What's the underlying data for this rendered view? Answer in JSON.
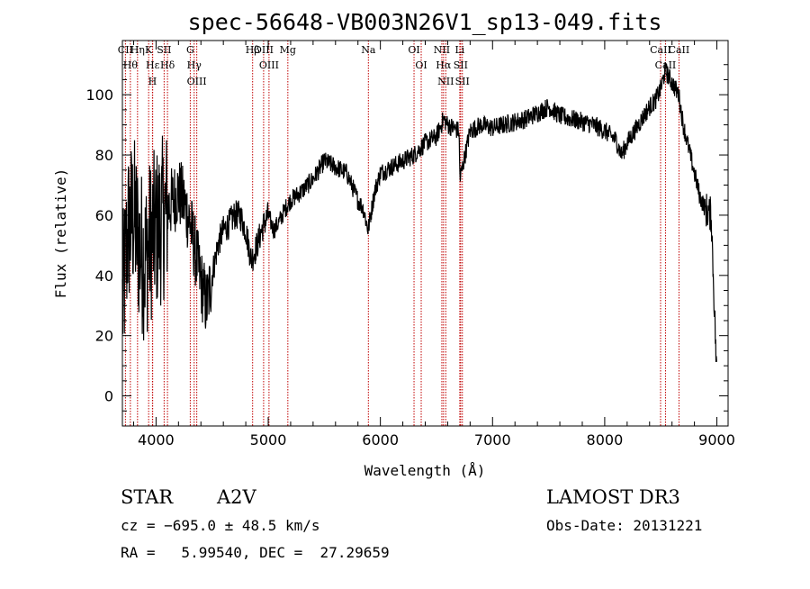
{
  "chart_data": {
    "type": "line",
    "title": "spec-56648-VB003N26V1_sp13-049.fits",
    "xlabel": "Wavelength (Å)",
    "ylabel": "Flux (relative)",
    "xlim": [
      3700,
      9100
    ],
    "ylim": [
      -10,
      118
    ],
    "xticks": [
      4000,
      5000,
      6000,
      7000,
      8000,
      9000
    ],
    "yticks": [
      0,
      20,
      40,
      60,
      80,
      100
    ],
    "grid": false,
    "spectrum_anchors": {
      "x": [
        3700,
        3750,
        3800,
        3850,
        3900,
        3950,
        4000,
        4050,
        4100,
        4150,
        4200,
        4250,
        4300,
        4350,
        4400,
        4450,
        4500,
        4550,
        4600,
        4650,
        4700,
        4750,
        4800,
        4850,
        4900,
        4950,
        5000,
        5050,
        5100,
        5150,
        5200,
        5300,
        5400,
        5500,
        5600,
        5700,
        5800,
        5850,
        5890,
        5950,
        6000,
        6100,
        6200,
        6300,
        6400,
        6500,
        6563,
        6600,
        6700,
        6710,
        6800,
        6900,
        7000,
        7100,
        7200,
        7300,
        7400,
        7500,
        7600,
        7700,
        7800,
        7900,
        8000,
        8100,
        8150,
        8200,
        8300,
        8400,
        8450,
        8500,
        8540,
        8600,
        8660,
        8700,
        8750,
        8800,
        8850,
        8900,
        8950,
        9000
      ],
      "y": [
        30,
        55,
        60,
        50,
        45,
        52,
        55,
        58,
        62,
        65,
        68,
        64,
        58,
        48,
        38,
        30,
        40,
        50,
        55,
        57,
        60,
        60,
        55,
        45,
        50,
        56,
        60,
        55,
        58,
        62,
        65,
        68,
        72,
        78,
        76,
        74,
        65,
        62,
        55,
        68,
        74,
        76,
        78,
        80,
        84,
        86,
        92,
        90,
        88,
        72,
        88,
        90,
        89,
        90,
        91,
        92,
        94,
        96,
        93,
        92,
        91,
        90,
        88,
        85,
        80,
        84,
        90,
        96,
        98,
        102,
        108,
        104,
        100,
        90,
        82,
        74,
        66,
        62,
        60,
        5
      ]
    },
    "spectral_lines": [
      {
        "label": "CII",
        "wavelength": 3727
      },
      {
        "label": "Hθ",
        "wavelength": 3771
      },
      {
        "label": "Hη",
        "wavelength": 3835
      },
      {
        "label": "K",
        "wavelength": 3934
      },
      {
        "label": "Hε",
        "wavelength": 3970
      },
      {
        "label": "H",
        "wavelength": 3968
      },
      {
        "label": "SII",
        "wavelength": 4072
      },
      {
        "label": "Hδ",
        "wavelength": 4102
      },
      {
        "label": "G",
        "wavelength": 4305
      },
      {
        "label": "Hγ",
        "wavelength": 4340
      },
      {
        "label": "OIII",
        "wavelength": 4363
      },
      {
        "label": "Hβ",
        "wavelength": 4861
      },
      {
        "label": "OIII",
        "wavelength": 4959
      },
      {
        "label": "OIII",
        "wavelength": 5007
      },
      {
        "label": "Mg",
        "wavelength": 5175
      },
      {
        "label": "Na",
        "wavelength": 5893
      },
      {
        "label": "OI",
        "wavelength": 6300
      },
      {
        "label": "OI",
        "wavelength": 6364
      },
      {
        "label": "NII",
        "wavelength": 6548
      },
      {
        "label": "Hα",
        "wavelength": 6563
      },
      {
        "label": "NII",
        "wavelength": 6583
      },
      {
        "label": "Li",
        "wavelength": 6708
      },
      {
        "label": "SII",
        "wavelength": 6716
      },
      {
        "label": "SII",
        "wavelength": 6731
      },
      {
        "label": "CaII",
        "wavelength": 8498
      },
      {
        "label": "CaII",
        "wavelength": 8542
      },
      {
        "label": "CaII",
        "wavelength": 8662
      }
    ],
    "line_color": "#000000",
    "marker_color": "#c00000"
  },
  "info": {
    "class": "STAR",
    "subclass": "A2V",
    "survey": "LAMOST DR3",
    "cz": "cz = −695.0 ± 48.5 km/s",
    "obs_date": "Obs-Date: 20131221",
    "radec": "RA =   5.99540, DEC =  27.29659"
  }
}
